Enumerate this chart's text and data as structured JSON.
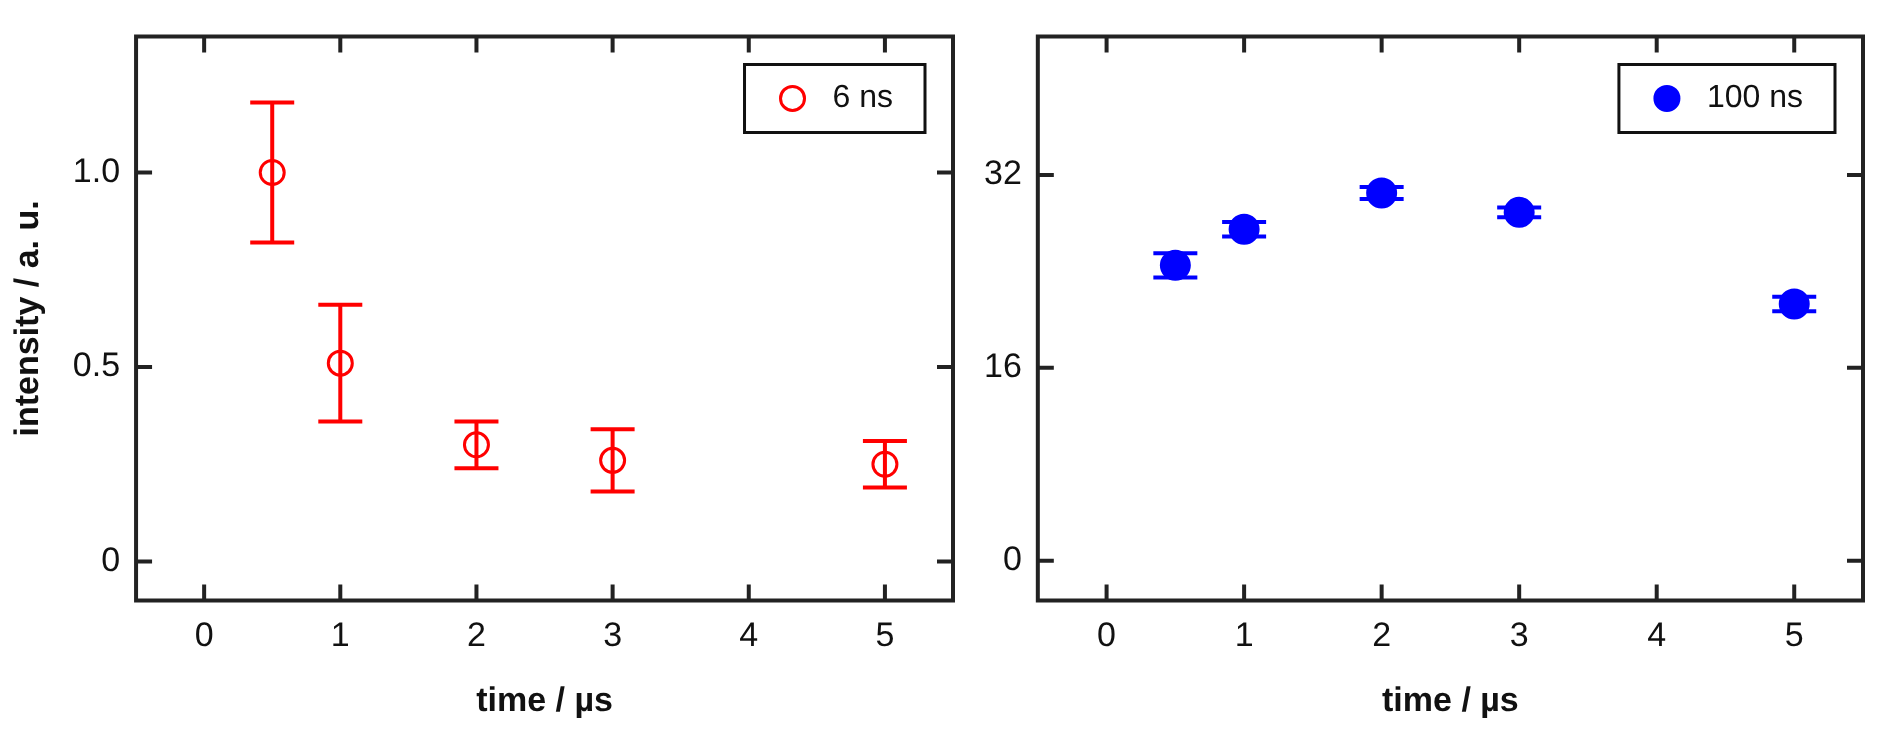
{
  "chart_data": [
    {
      "type": "scatter",
      "xlabel": "time / µs",
      "ylabel": "intensity / a. u.",
      "x": [
        0.5,
        1,
        2,
        3,
        5
      ],
      "series": [
        {
          "name": "6 ns",
          "color": "#ff0000",
          "values": [
            1.0,
            0.51,
            0.3,
            0.26,
            0.25
          ],
          "errors": [
            0.18,
            0.15,
            0.06,
            0.08,
            0.06
          ]
        }
      ],
      "xlim": [
        -0.5,
        5.5
      ],
      "xticks": [
        0,
        1,
        2,
        3,
        4,
        5
      ],
      "ylim": [
        -0.1,
        1.35
      ],
      "yticks": [
        0,
        {
          "value": 0.5,
          "label": "0.5"
        },
        {
          "value": 1,
          "label": "1.0"
        }
      ],
      "grid": false,
      "legend": "top right",
      "marker": "circle-open"
    },
    {
      "type": "scatter",
      "xlabel": "time / µs",
      "x": [
        0.5,
        1,
        2,
        3,
        5
      ],
      "series": [
        {
          "name": "100 ns",
          "color": "#0000ff",
          "values": [
            24.5,
            27.5,
            30.5,
            28.9,
            21.3
          ],
          "errors": [
            1.0,
            0.6,
            0.5,
            0.4,
            0.6
          ]
        }
      ],
      "xlim": [
        -0.5,
        5.5
      ],
      "xticks": [
        0,
        1,
        2,
        3,
        4,
        5
      ],
      "ylim": [
        -3.3,
        43.5
      ],
      "yticks": [
        0,
        16,
        32
      ],
      "grid": false,
      "legend": "top right",
      "marker": "circle"
    }
  ]
}
